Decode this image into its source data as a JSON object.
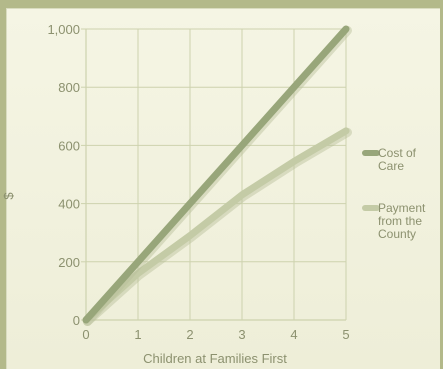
{
  "chart_data": {
    "type": "line",
    "title": "",
    "xlabel": "Children at Families First",
    "ylabel": "$",
    "x": [
      0,
      1,
      2,
      3,
      4,
      5
    ],
    "xticks": [
      "0",
      "1",
      "2",
      "3",
      "4",
      "5"
    ],
    "yticks": [
      "0",
      "200",
      "400",
      "600",
      "800",
      "1,000"
    ],
    "xlim": [
      0,
      5
    ],
    "ylim": [
      0,
      1000
    ],
    "grid": true,
    "legend_position": "right",
    "series": [
      {
        "name": "Cost of Care",
        "values": [
          0,
          200,
          400,
          600,
          800,
          1000
        ],
        "color": "#98a67a"
      },
      {
        "name": "Payment from the County",
        "values": [
          0,
          160,
          290,
          430,
          545,
          650
        ],
        "color": "#c4cba6"
      }
    ]
  },
  "colors": {
    "background": "#b3b98a",
    "panel": "#f3f3e2",
    "grid": "#cdd2ae",
    "text": "#8c916f"
  }
}
